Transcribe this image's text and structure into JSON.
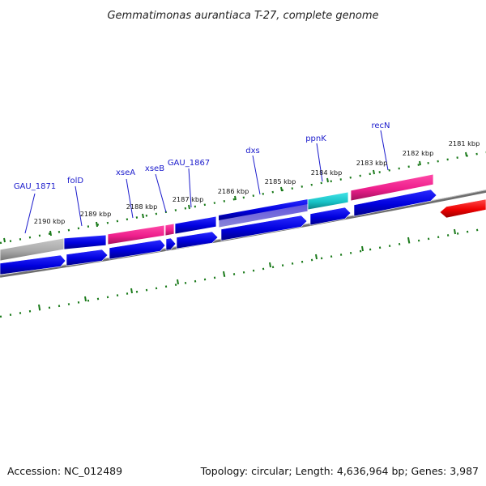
{
  "title": "Gemmatimonas aurantiaca T-27, complete genome",
  "footer": {
    "accession": "Accession: NC_012489",
    "summary": "Topology: circular; Length: 4,636,964 bp; Genes: 3,987"
  },
  "kbp_labels": [
    "2181 kbp",
    "2182 kbp",
    "2183 kbp",
    "2184 kbp",
    "2185 kbp",
    "2186 kbp",
    "2187 kbp",
    "2188 kbp",
    "2189 kbp",
    "2190 kbp"
  ],
  "gene_labels": [
    "recN",
    "ppnK",
    "dxs",
    "GAU_1867",
    "xseB",
    "xseA",
    "folD",
    "GAU_1871"
  ],
  "colors": {
    "background": "#ffffff",
    "cds": "#0000dd",
    "pink": "#ee1f8c",
    "cyan": "#18c3c7",
    "gray": "#aaaaaa",
    "red": "#ee0000",
    "backbone": "#777777",
    "ticks": "#1a7a1a",
    "gene_label_text": "#1a1acc"
  }
}
